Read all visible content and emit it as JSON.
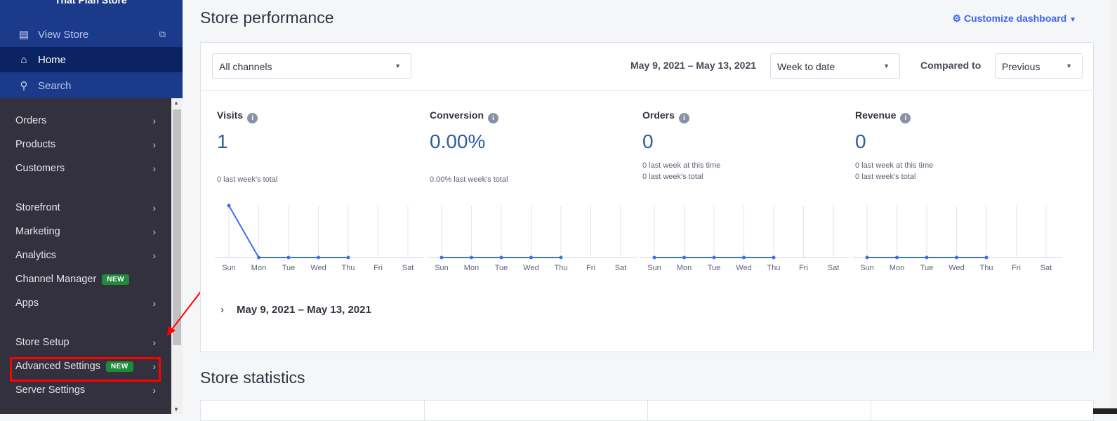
{
  "sidebar": {
    "store_title": "That Plan Store",
    "view_store": "View Store",
    "home": "Home",
    "search": "Search",
    "items": [
      {
        "label": "Orders"
      },
      {
        "label": "Products"
      },
      {
        "label": "Customers"
      },
      {
        "label": "Storefront"
      },
      {
        "label": "Marketing"
      },
      {
        "label": "Analytics"
      },
      {
        "label": "Channel Manager",
        "badge": "NEW"
      },
      {
        "label": "Apps"
      },
      {
        "label": "Store Setup"
      },
      {
        "label": "Advanced Settings",
        "badge": "NEW"
      },
      {
        "label": "Server Settings"
      }
    ]
  },
  "main": {
    "title": "Store performance",
    "customize": "Customize dashboard",
    "channel": "All channels",
    "date_range": "May 9, 2021 – May 13, 2021",
    "period": "Week to date",
    "compared_label": "Compared to",
    "compared": "Previous",
    "collapsed_range": "May 9, 2021 – May 13, 2021",
    "stats_title": "Store statistics"
  },
  "colors": {
    "accent": "#3c64f4",
    "sidebar": "#34313f",
    "sidebar_top": "#1b3a8a",
    "badge": "#1f8a3b",
    "highlight": "#ff0000"
  },
  "chart_data": [
    {
      "type": "line",
      "title": "Visits",
      "value": "1",
      "sub1": "0 last week's total",
      "sub2": "",
      "categories": [
        "Sun",
        "Mon",
        "Tue",
        "Wed",
        "Thu",
        "Fri",
        "Sat"
      ],
      "values": [
        1,
        0,
        0,
        0,
        0,
        null,
        null
      ]
    },
    {
      "type": "line",
      "title": "Conversion",
      "value": "0.00%",
      "sub1": "0.00% last week's total",
      "sub2": "",
      "categories": [
        "Sun",
        "Mon",
        "Tue",
        "Wed",
        "Thu",
        "Fri",
        "Sat"
      ],
      "values": [
        0,
        0,
        0,
        0,
        0,
        null,
        null
      ]
    },
    {
      "type": "line",
      "title": "Orders",
      "value": "0",
      "sub1": "0 last week at this time",
      "sub2": "0 last week's total",
      "categories": [
        "Sun",
        "Mon",
        "Tue",
        "Wed",
        "Thu",
        "Fri",
        "Sat"
      ],
      "values": [
        0,
        0,
        0,
        0,
        0,
        null,
        null
      ]
    },
    {
      "type": "line",
      "title": "Revenue",
      "value": "0",
      "sub1": "0 last week at this time",
      "sub2": "0 last week's total",
      "categories": [
        "Sun",
        "Mon",
        "Tue",
        "Wed",
        "Thu",
        "Fri",
        "Sat"
      ],
      "values": [
        0,
        0,
        0,
        0,
        0,
        null,
        null
      ]
    }
  ]
}
